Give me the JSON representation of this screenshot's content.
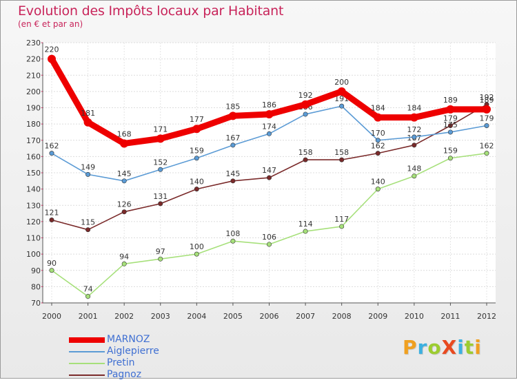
{
  "chart_data": {
    "type": "line",
    "title": "Evolution des Impôts locaux par Habitant",
    "subtitle": "(en € et par an)",
    "x": [
      "2000",
      "2001",
      "2002",
      "2003",
      "2004",
      "2005",
      "2006",
      "2007",
      "2008",
      "2009",
      "2010",
      "2011",
      "2012"
    ],
    "ylim": [
      70,
      230
    ],
    "yticks": [
      "70",
      "80",
      "90",
      "100",
      "110",
      "120",
      "130",
      "140",
      "150",
      "160",
      "170",
      "180",
      "190",
      "200",
      "210",
      "220",
      "230"
    ],
    "grid": true,
    "legend_position": "bottom-left",
    "series": [
      {
        "name": "Pagnoz",
        "color": "#7a2a2a",
        "values": [
          121,
          115,
          126,
          131,
          140,
          145,
          147,
          158,
          158,
          162,
          167,
          179,
          192
        ],
        "labels": [
          "121",
          "115",
          "126",
          "131",
          "140",
          "145",
          "147",
          "158",
          "158",
          "162",
          "167",
          "179",
          "192"
        ]
      },
      {
        "name": "Pretin",
        "color": "#a6e07a",
        "values": [
          90,
          74,
          94,
          97,
          100,
          108,
          106,
          114,
          117,
          140,
          148,
          159,
          162
        ],
        "labels": [
          "90",
          "74",
          "94",
          "97",
          "100",
          "108",
          "106",
          "114",
          "117",
          "140",
          "148",
          "159",
          "162"
        ]
      },
      {
        "name": "Aiglepierre",
        "color": "#5b9bd5",
        "values": [
          162,
          149,
          145,
          152,
          159,
          167,
          174,
          186,
          191,
          170,
          172,
          175,
          179
        ],
        "labels": [
          "162",
          "149",
          "145",
          "152",
          "159",
          "167",
          "174",
          "186",
          "191",
          "170",
          "172",
          "175",
          "179"
        ]
      },
      {
        "name": "MARNOZ",
        "color": "#ee0000",
        "values": [
          220,
          181,
          168,
          171,
          177,
          185,
          186,
          192,
          200,
          184,
          184,
          189,
          189
        ],
        "labels": [
          "220",
          "181",
          "168",
          "171",
          "177",
          "185",
          "186",
          "192",
          "200",
          "184",
          "184",
          "189",
          "189"
        ]
      }
    ],
    "legend_order": [
      "MARNOZ",
      "Aiglepierre",
      "Pretin",
      "Pagnoz"
    ]
  },
  "brand": {
    "letters": [
      {
        "char": "P",
        "color": "#f0a020"
      },
      {
        "char": "r",
        "color": "#3cb0e0"
      },
      {
        "char": "o",
        "color": "#9ccc30"
      },
      {
        "char": "X",
        "color": "#e84a20"
      },
      {
        "char": "i",
        "color": "#3cb0e0"
      },
      {
        "char": "t",
        "color": "#9ccc30"
      },
      {
        "char": "i",
        "color": "#f0a020"
      }
    ]
  }
}
